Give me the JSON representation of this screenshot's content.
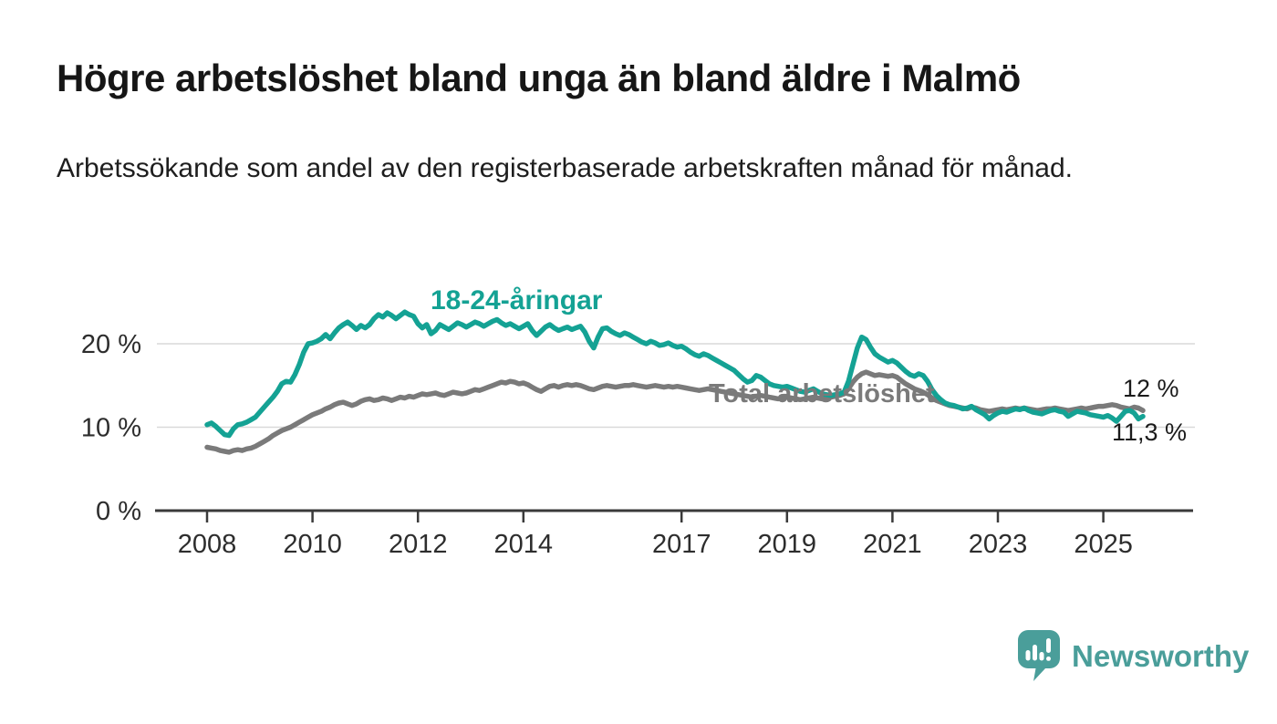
{
  "header": {
    "title": "Högre arbetslöshet bland unga än bland äldre i Malmö",
    "subtitle": "Arbetssökande som andel av den registerbaserade arbetskraften månad för månad."
  },
  "chart_data": {
    "type": "line",
    "title": "Högre arbetslöshet bland unga än bland äldre i Malmö",
    "subtitle": "Arbetssökande som andel av den registerbaserade arbetskraften månad för månad.",
    "x_start": 2008.0,
    "x_step_months": 1,
    "x_ticks": [
      2008,
      2010,
      2012,
      2014,
      2017,
      2019,
      2021,
      2023,
      2025
    ],
    "y_ticks": [
      {
        "value": 0,
        "label": "0 %"
      },
      {
        "value": 10,
        "label": "10 %"
      },
      {
        "value": 20,
        "label": "20 %"
      }
    ],
    "ylim": [
      0,
      26
    ],
    "grid": "horizontal",
    "legend_position": "inline-labels",
    "series": [
      {
        "id": "youth",
        "name": "18-24-åringar",
        "label": "18-24-åringar",
        "end_label": "11,3 %",
        "end_value": 11.3,
        "color": "#14A294",
        "values": [
          10.3,
          10.5,
          10.1,
          9.6,
          9.1,
          9.0,
          9.8,
          10.3,
          10.4,
          10.6,
          10.9,
          11.2,
          11.8,
          12.4,
          13.0,
          13.6,
          14.3,
          15.2,
          15.5,
          15.4,
          16.3,
          17.5,
          19.0,
          20.0,
          20.1,
          20.3,
          20.6,
          21.1,
          20.6,
          21.3,
          21.9,
          22.3,
          22.6,
          22.2,
          21.7,
          22.2,
          21.9,
          22.3,
          23.0,
          23.5,
          23.2,
          23.7,
          23.4,
          23.0,
          23.4,
          23.8,
          23.5,
          23.3,
          22.4,
          21.9,
          22.3,
          21.2,
          21.6,
          22.3,
          22.0,
          21.7,
          22.1,
          22.5,
          22.3,
          22.0,
          22.3,
          22.6,
          22.4,
          22.1,
          22.4,
          22.7,
          22.9,
          22.5,
          22.2,
          22.4,
          22.1,
          21.8,
          22.1,
          22.4,
          21.6,
          21.0,
          21.5,
          22.0,
          22.3,
          21.9,
          21.6,
          21.8,
          22.0,
          21.7,
          21.9,
          22.1,
          21.4,
          20.3,
          19.5,
          20.8,
          21.8,
          21.9,
          21.5,
          21.2,
          21.0,
          21.3,
          21.1,
          20.8,
          20.5,
          20.2,
          20.0,
          20.3,
          20.1,
          19.8,
          19.9,
          20.1,
          19.8,
          19.6,
          19.7,
          19.4,
          19.0,
          18.7,
          18.5,
          18.8,
          18.6,
          18.3,
          18.0,
          17.7,
          17.4,
          17.1,
          16.8,
          16.3,
          15.8,
          15.4,
          15.6,
          16.2,
          16.0,
          15.6,
          15.2,
          15.0,
          14.9,
          14.8,
          14.9,
          14.7,
          14.5,
          14.3,
          14.2,
          14.4,
          14.6,
          14.3,
          14.0,
          13.9,
          13.8,
          13.9,
          14.0,
          14.2,
          15.5,
          17.5,
          19.5,
          20.8,
          20.5,
          19.6,
          18.8,
          18.4,
          18.1,
          17.8,
          18.0,
          17.7,
          17.2,
          16.7,
          16.3,
          16.1,
          16.4,
          16.2,
          15.5,
          14.5,
          13.8,
          13.3,
          12.9,
          12.7,
          12.6,
          12.4,
          12.2,
          12.3,
          12.5,
          12.1,
          11.8,
          11.5,
          11.0,
          11.4,
          11.7,
          11.9,
          11.8,
          12.0,
          12.2,
          12.1,
          12.3,
          12.0,
          11.8,
          11.7,
          11.6,
          11.8,
          12.0,
          12.1,
          11.9,
          11.8,
          11.3,
          11.6,
          11.9,
          11.8,
          11.7,
          11.5,
          11.4,
          11.3,
          11.2,
          11.4,
          11.1,
          10.7,
          11.3,
          11.9,
          12.0,
          11.7,
          11.0,
          11.3
        ]
      },
      {
        "id": "total",
        "name": "Total arbetslöshet",
        "label": "Total arbetslöshet",
        "end_label": "12 %",
        "end_value": 12.0,
        "color": "#7a7a7a",
        "values": [
          7.6,
          7.5,
          7.4,
          7.2,
          7.1,
          7.0,
          7.2,
          7.3,
          7.2,
          7.4,
          7.5,
          7.7,
          8.0,
          8.3,
          8.6,
          9.0,
          9.3,
          9.6,
          9.8,
          10.0,
          10.3,
          10.6,
          10.9,
          11.2,
          11.5,
          11.7,
          11.9,
          12.2,
          12.4,
          12.7,
          12.9,
          13.0,
          12.8,
          12.6,
          12.8,
          13.1,
          13.3,
          13.4,
          13.2,
          13.3,
          13.5,
          13.4,
          13.2,
          13.4,
          13.6,
          13.5,
          13.7,
          13.6,
          13.8,
          14.0,
          13.9,
          14.0,
          14.1,
          13.9,
          13.8,
          14.0,
          14.2,
          14.1,
          14.0,
          14.1,
          14.3,
          14.5,
          14.4,
          14.6,
          14.8,
          15.0,
          15.2,
          15.4,
          15.3,
          15.5,
          15.4,
          15.2,
          15.3,
          15.1,
          14.8,
          14.5,
          14.3,
          14.6,
          14.9,
          15.0,
          14.8,
          15.0,
          15.1,
          15.0,
          15.1,
          15.0,
          14.8,
          14.6,
          14.5,
          14.7,
          14.9,
          15.0,
          14.9,
          14.8,
          14.9,
          15.0,
          15.0,
          15.1,
          15.0,
          14.9,
          14.8,
          14.9,
          15.0,
          14.9,
          14.8,
          14.9,
          14.8,
          14.9,
          14.8,
          14.7,
          14.6,
          14.5,
          14.4,
          14.5,
          14.6,
          14.5,
          14.4,
          14.3,
          14.2,
          14.1,
          14.0,
          13.9,
          13.8,
          13.7,
          13.6,
          13.7,
          13.8,
          13.7,
          13.6,
          13.5,
          13.4,
          13.5,
          13.6,
          13.5,
          13.4,
          13.3,
          13.4,
          13.5,
          13.6,
          13.5,
          13.4,
          13.5,
          13.6,
          13.7,
          13.8,
          14.0,
          14.6,
          15.4,
          16.0,
          16.4,
          16.6,
          16.4,
          16.2,
          16.3,
          16.2,
          16.1,
          16.2,
          16.0,
          15.6,
          15.2,
          14.9,
          14.6,
          14.4,
          14.2,
          13.9,
          13.5,
          13.2,
          13.0,
          12.8,
          12.6,
          12.5,
          12.4,
          12.3,
          12.2,
          12.4,
          12.3,
          12.1,
          12.0,
          11.9,
          12.0,
          12.1,
          12.2,
          12.1,
          12.2,
          12.3,
          12.2,
          12.3,
          12.2,
          12.1,
          12.0,
          12.1,
          12.2,
          12.2,
          12.3,
          12.2,
          12.1,
          12.0,
          12.1,
          12.2,
          12.3,
          12.2,
          12.3,
          12.4,
          12.5,
          12.5,
          12.6,
          12.7,
          12.6,
          12.4,
          12.3,
          12.2,
          12.4,
          12.3,
          12.0
        ]
      }
    ]
  },
  "branding": {
    "logo_text": "Newsworthy",
    "logo_color": "#4A9E9A",
    "logo_icon": "bar-chart-speech-bubble-icon"
  },
  "colors": {
    "background": "#ffffff",
    "title_text": "#161616",
    "axis_text": "#2d2d2d",
    "gridline": "#d9d9d9",
    "end_label_text": "#1b1b1b",
    "youth_line": "#14A294",
    "total_line": "#7a7a7a"
  }
}
